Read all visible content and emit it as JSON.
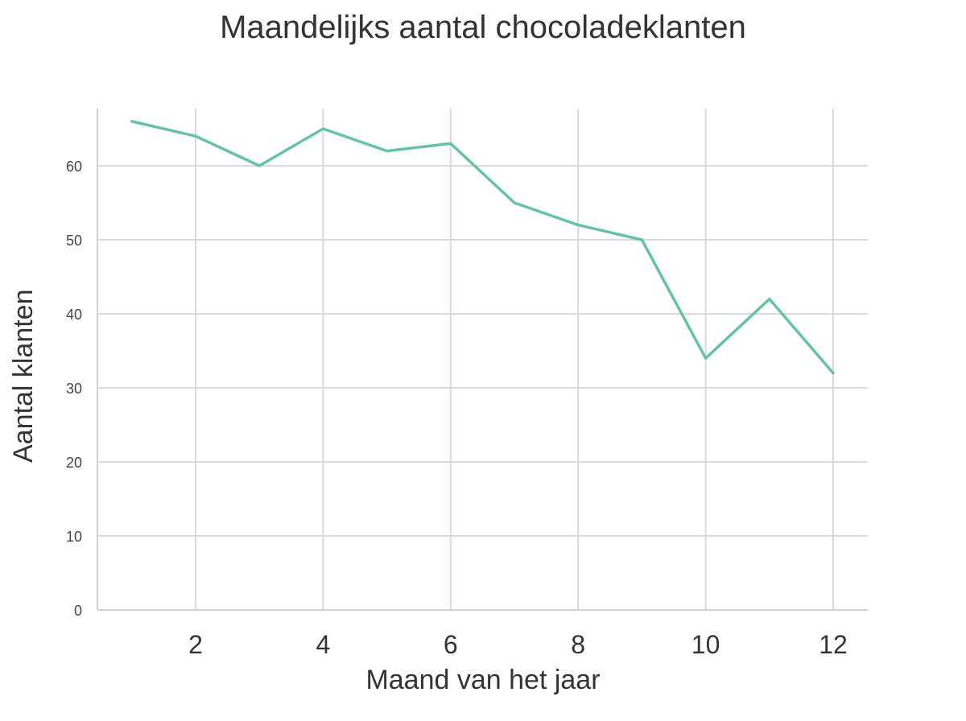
{
  "chart_data": {
    "type": "line",
    "title": "Maandelijks aantal chocoladeklanten",
    "xlabel": "Maand van het jaar",
    "ylabel": "Aantal klanten",
    "x": [
      1,
      2,
      3,
      4,
      5,
      6,
      7,
      8,
      9,
      10,
      11,
      12
    ],
    "series": [
      {
        "name": "Aantal klanten",
        "values": [
          66,
          64,
          60,
          65,
          62,
          63,
          55,
          52,
          50,
          34,
          42,
          32
        ],
        "color": "#66c2a5"
      }
    ],
    "xticks": [
      "2",
      "4",
      "6",
      "8",
      "10",
      "12"
    ],
    "yticks": [
      "0",
      "10",
      "20",
      "30",
      "40",
      "50",
      "60"
    ],
    "xlim": [
      0.5,
      12.5
    ],
    "ylim": [
      0,
      68
    ],
    "grid": true,
    "legend": null
  }
}
